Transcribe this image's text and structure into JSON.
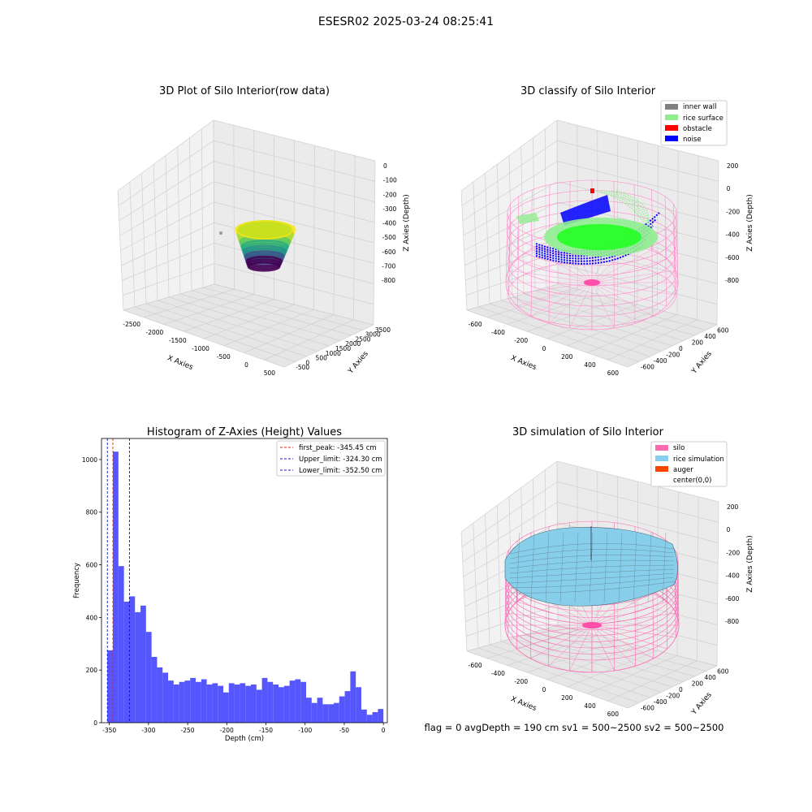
{
  "suptitle": "ESESR02 2025-03-24 08:25:41",
  "footer": "flag = 0     avgDepth = 190 cm  sv1 = 500~2500  sv2 = 500~2500",
  "colors": {
    "hist": "#4d4dff",
    "first_peak": "#e02020",
    "limit": "#1010cc",
    "inner_wall": "#808080",
    "rice_surface": "#90ee90",
    "obstacle": "#ff0000",
    "noise": "#0000ff",
    "silo": "#ff69b4",
    "rice_sim": "#87ceeb",
    "auger": "#ff4500"
  },
  "chart_data": [
    {
      "type": "scatter",
      "title": "3D Plot of Silo Interior(row data)",
      "xlabel": "X Axies",
      "ylabel": "Y Axies",
      "zlabel": "Z Axies (Depth)",
      "xticks": [
        "-2500",
        "-2000",
        "-1500",
        "-1000",
        "-500",
        "0",
        "500"
      ],
      "yticks": [
        "-500",
        "0",
        "500",
        "1000",
        "1500",
        "2000",
        "2500",
        "3000",
        "3500"
      ],
      "zticks": [
        "0",
        "-100",
        "-200",
        "-300",
        "-400",
        "-500",
        "-600",
        "-700",
        "-800"
      ],
      "colormap": "viridis"
    },
    {
      "type": "scatter",
      "title": "3D classify of Silo Interior",
      "xlabel": "X Axies",
      "ylabel": "Y Axies",
      "zlabel": "Z Axies (Depth)",
      "xticks": [
        "-600",
        "-400",
        "-200",
        "0",
        "200",
        "400",
        "600"
      ],
      "yticks": [
        "-600",
        "-400",
        "-200",
        "0",
        "200",
        "400",
        "600"
      ],
      "zticks": [
        "200",
        "0",
        "-200",
        "-400",
        "-600",
        "-800"
      ],
      "legend": [
        "inner wall",
        "rice surface",
        "obstacle",
        "noise"
      ],
      "legend_loc": "upper right"
    },
    {
      "type": "bar",
      "title": "Histogram of Z-Axies (Height) Values",
      "xlabel": "Depth (cm)",
      "ylabel": "Frequency",
      "xlim": [
        -360,
        5
      ],
      "ylim": [
        0,
        1080
      ],
      "xticks": [
        -350,
        -300,
        -250,
        -200,
        -150,
        -100,
        -50,
        0
      ],
      "yticks": [
        0,
        200,
        400,
        600,
        800,
        1000
      ],
      "bin_start": -352.5,
      "bin_width": 7.05,
      "values": [
        275,
        1030,
        595,
        460,
        480,
        420,
        445,
        345,
        250,
        210,
        190,
        160,
        145,
        155,
        160,
        170,
        155,
        165,
        145,
        150,
        140,
        115,
        150,
        145,
        150,
        140,
        145,
        125,
        170,
        155,
        145,
        135,
        140,
        160,
        165,
        155,
        95,
        75,
        95,
        70,
        70,
        75,
        100,
        120,
        195,
        135,
        50,
        30,
        40,
        52
      ],
      "lines": [
        {
          "name": "first_peak: -345.45 cm",
          "x": -345.45,
          "color": "first_peak"
        },
        {
          "name": "Upper_limit: -324.30 cm",
          "x": -324.3,
          "color": "limit"
        },
        {
          "name": "Lower_limit: -352.50 cm",
          "x": -352.5,
          "color": "limit"
        }
      ],
      "legend_loc": "upper right"
    },
    {
      "type": "area",
      "title": "3D simulation of Silo Interior",
      "xlabel": "X Axies",
      "ylabel": "Y Axies",
      "zlabel": "Z Axies (Depth)",
      "xticks": [
        "-600",
        "-400",
        "-200",
        "0",
        "200",
        "400",
        "600"
      ],
      "yticks": [
        "-600",
        "-400",
        "-200",
        "0",
        "200",
        "400",
        "600"
      ],
      "zticks": [
        "200",
        "0",
        "-200",
        "-400",
        "-600",
        "-800"
      ],
      "legend": [
        "silo",
        "rice simulation",
        "auger",
        "center(0,0)"
      ],
      "legend_loc": "upper right"
    }
  ]
}
